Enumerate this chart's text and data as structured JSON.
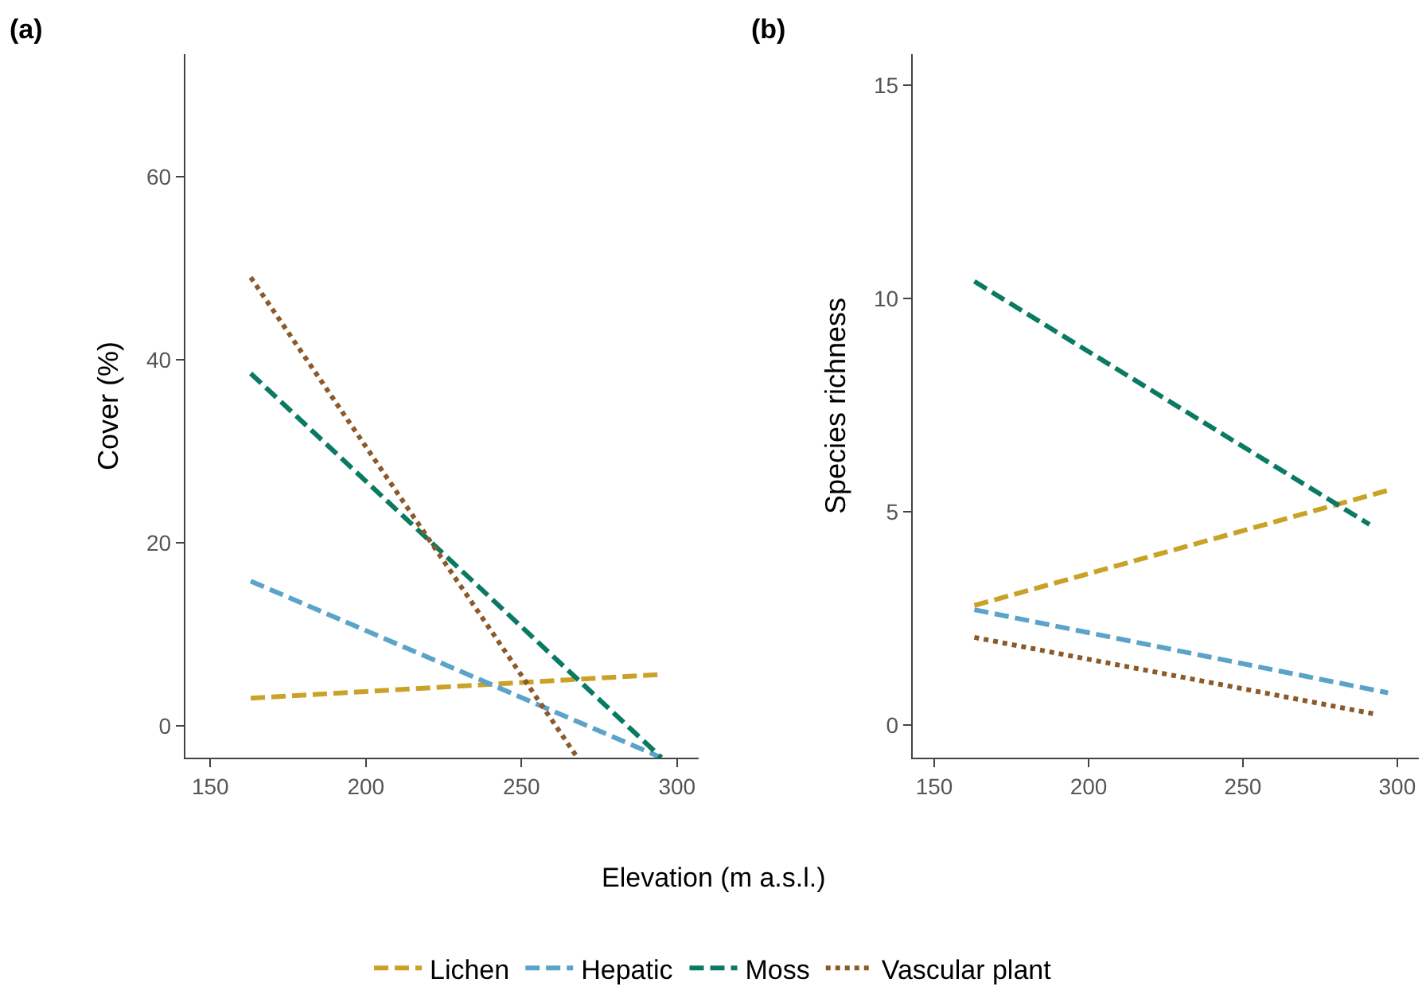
{
  "chart_data": [
    {
      "type": "line",
      "title": "(a)",
      "xlabel": "Elevation (m a.s.l.)",
      "ylabel": "Cover (%)",
      "x": [
        163,
        295
      ],
      "xlim": [
        142,
        307
      ],
      "xticks": [
        150,
        200,
        250,
        300
      ],
      "ylim": [
        -3.5,
        73.4
      ],
      "yticks": [
        0,
        20,
        40,
        60
      ],
      "legend": "bottom",
      "series": [
        {
          "name": "Lichen",
          "color": "#c9a227",
          "line_style": "dashed",
          "values": [
            3,
            5.6
          ]
        },
        {
          "name": "Hepatic",
          "color": "#5ba3c9",
          "line_style": "dashed",
          "values": [
            15.8,
            -3.5
          ]
        },
        {
          "name": "Moss",
          "color": "#0b7a62",
          "line_style": "dashed",
          "values": [
            38.5,
            -3.5
          ]
        },
        {
          "name": "Vascular plant",
          "color": "#8b5a2b",
          "line_style": "dotted",
          "x": [
            163,
            268
          ],
          "values": [
            49,
            -3.5
          ]
        }
      ]
    },
    {
      "type": "line",
      "title": "(b)",
      "ylabel": "Species richness",
      "x": [
        163,
        297
      ],
      "xlim": [
        143,
        307
      ],
      "xticks": [
        150,
        200,
        250,
        300
      ],
      "ylim": [
        -0.77,
        15.73
      ],
      "yticks": [
        0,
        5,
        10,
        15
      ],
      "series": [
        {
          "name": "Lichen",
          "color": "#c9a227",
          "line_style": "dashed",
          "values": [
            2.8,
            5.5
          ]
        },
        {
          "name": "Hepatic",
          "color": "#5ba3c9",
          "line_style": "dashed",
          "values": [
            2.7,
            0.75
          ]
        },
        {
          "name": "Moss",
          "color": "#0b7a62",
          "line_style": "dashed",
          "x": [
            163,
            291
          ],
          "values": [
            10.4,
            4.7
          ]
        },
        {
          "name": "Vascular plant",
          "color": "#8b5a2b",
          "line_style": "dotted",
          "x": [
            163,
            293
          ],
          "values": [
            2.05,
            0.25
          ]
        }
      ]
    }
  ]
}
